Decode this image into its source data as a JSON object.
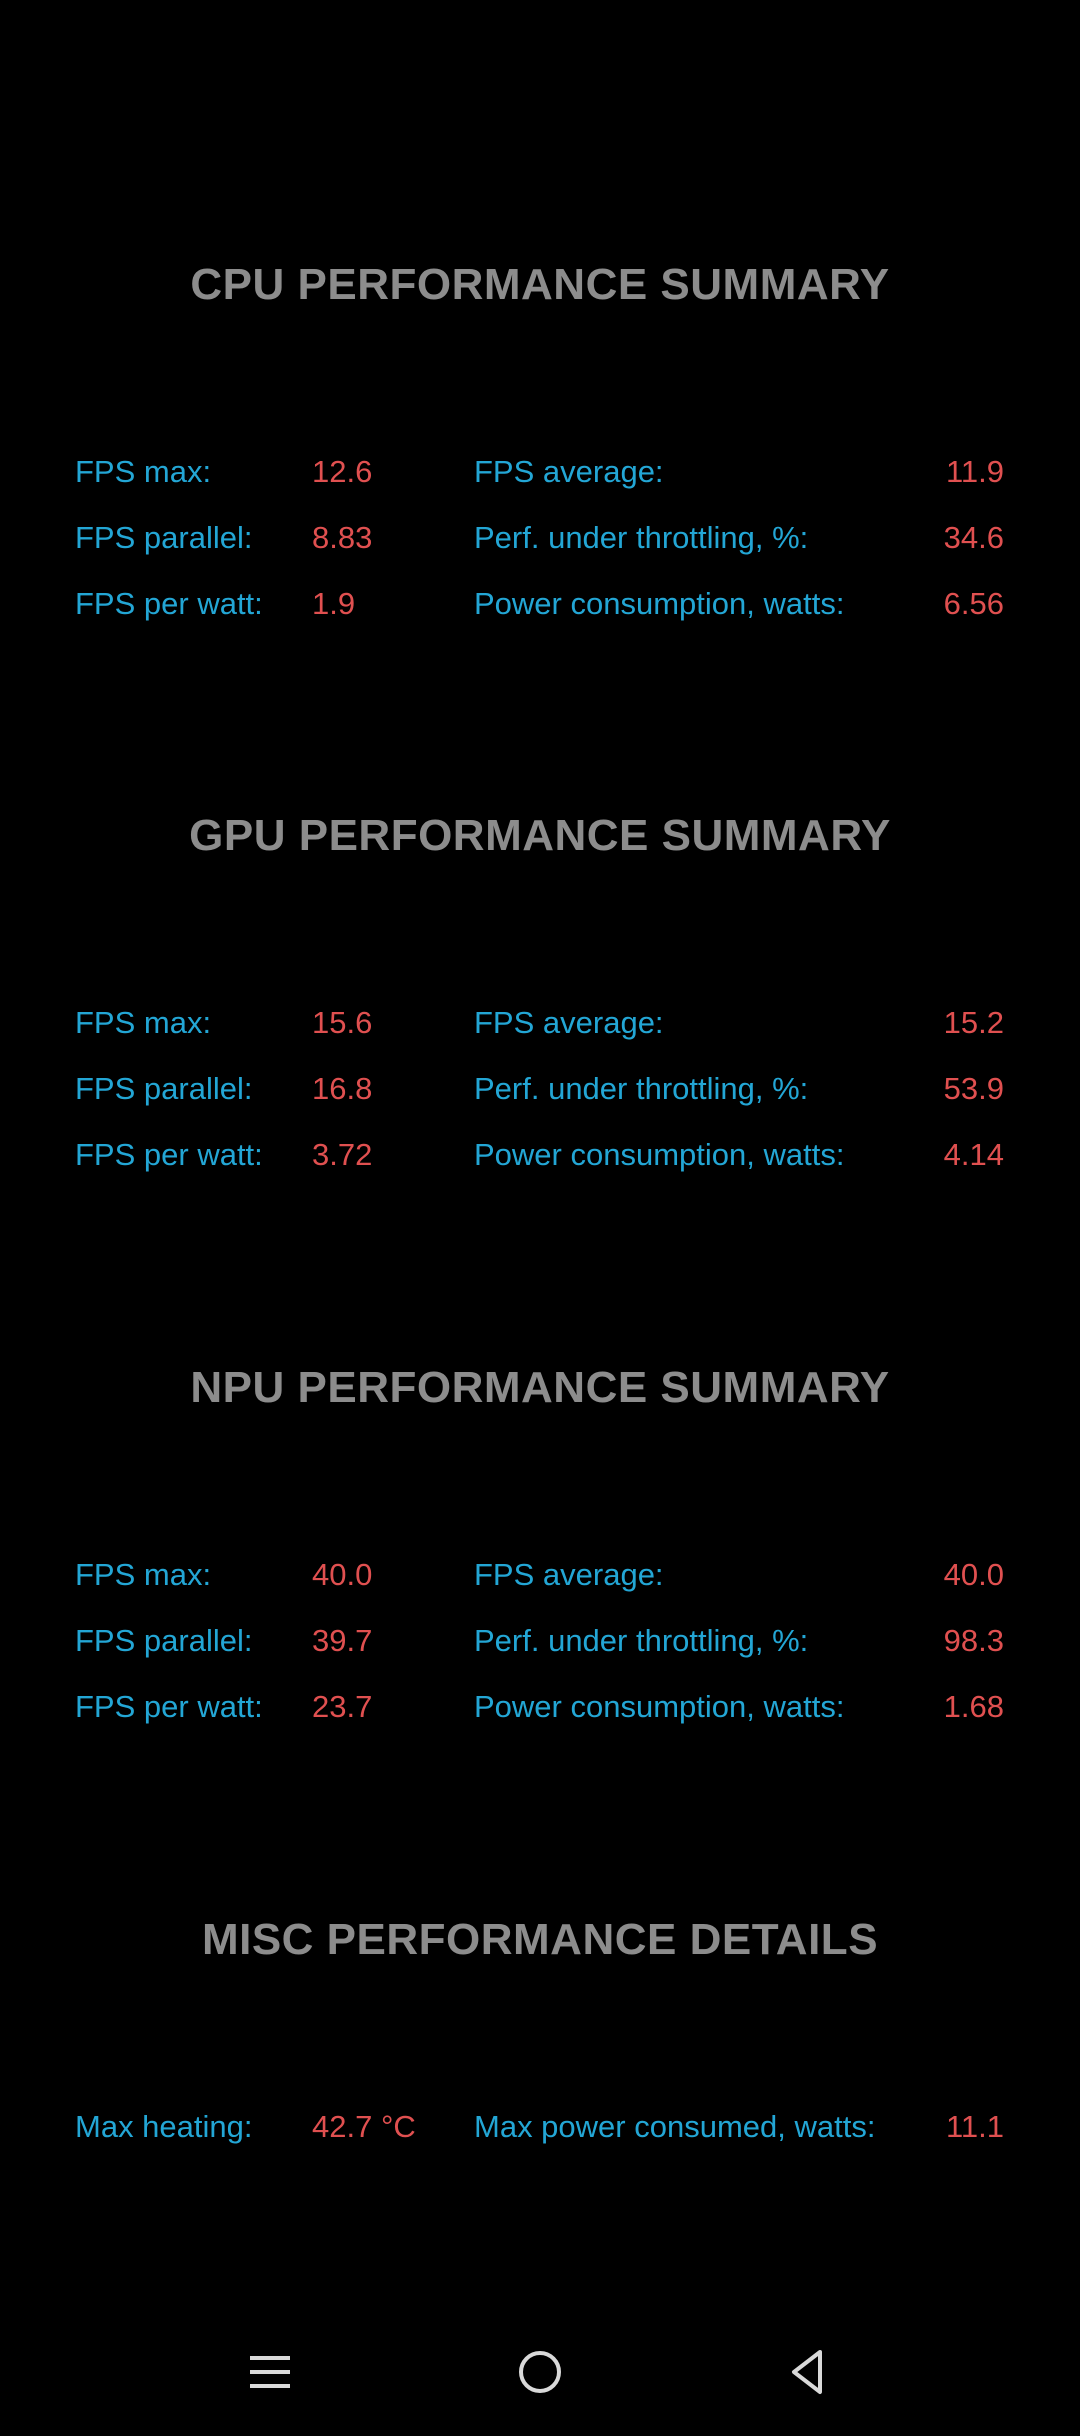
{
  "sections": [
    {
      "title": "CPU PERFORMANCE SUMMARY",
      "rows": [
        {
          "label_left": "FPS max:",
          "value_left": "12.6",
          "label_right": "FPS average:",
          "value_right": "11.9"
        },
        {
          "label_left": "FPS parallel:",
          "value_left": "8.83",
          "label_right": "Perf. under throttling, %:",
          "value_right": "34.6"
        },
        {
          "label_left": "FPS per watt:",
          "value_left": "1.9",
          "label_right": "Power consumption, watts:",
          "value_right": "6.56"
        }
      ]
    },
    {
      "title": "GPU PERFORMANCE SUMMARY",
      "rows": [
        {
          "label_left": "FPS max:",
          "value_left": "15.6",
          "label_right": "FPS average:",
          "value_right": "15.2"
        },
        {
          "label_left": "FPS parallel:",
          "value_left": "16.8",
          "label_right": "Perf. under throttling, %:",
          "value_right": "53.9"
        },
        {
          "label_left": "FPS per watt:",
          "value_left": "3.72",
          "label_right": "Power consumption, watts:",
          "value_right": "4.14"
        }
      ]
    },
    {
      "title": "NPU PERFORMANCE SUMMARY",
      "rows": [
        {
          "label_left": "FPS max:",
          "value_left": "40.0",
          "label_right": "FPS average:",
          "value_right": "40.0"
        },
        {
          "label_left": "FPS parallel:",
          "value_left": "39.7",
          "label_right": "Perf. under throttling, %:",
          "value_right": "98.3"
        },
        {
          "label_left": "FPS per watt:",
          "value_left": "23.7",
          "label_right": "Power consumption, watts:",
          "value_right": "1.68"
        }
      ]
    },
    {
      "title": "MISC PERFORMANCE DETAILS",
      "rows": [
        {
          "label_left": "Max heating:",
          "value_left": "42.7 °C",
          "label_right": "Max power consumed, watts:",
          "value_right": "11.1"
        }
      ]
    }
  ],
  "navbar": {
    "icons": [
      "menu-icon",
      "home-icon",
      "back-icon"
    ]
  },
  "colors": {
    "background": "#000000",
    "title": "#8c8c8c",
    "label": "#23a6d5",
    "value": "#e05050",
    "nav_icon": "#d9d9d9"
  }
}
